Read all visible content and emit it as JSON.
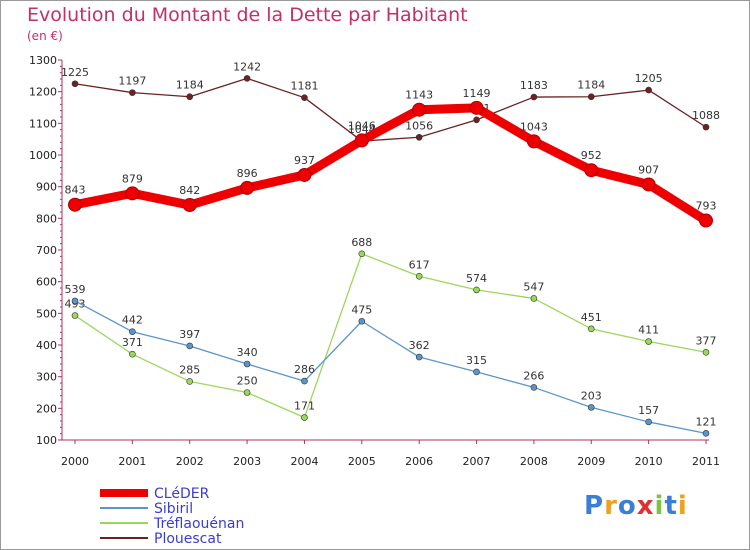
{
  "chart_data": {
    "type": "line",
    "title": "Evolution du Montant de la Dette par Habitant",
    "subtitle": "(en €)",
    "x": [
      "2000",
      "2001",
      "2002",
      "2003",
      "2004",
      "2005",
      "2006",
      "2007",
      "2008",
      "2009",
      "2010",
      "2011"
    ],
    "ylim": [
      100,
      1300
    ],
    "yticks": [
      100,
      200,
      300,
      400,
      500,
      600,
      700,
      800,
      900,
      1000,
      1100,
      1200,
      1300
    ],
    "grid": false,
    "legend_position": "bottom-left",
    "series": [
      {
        "name": "CLéDER",
        "color": "#ee0000",
        "values": [
          843,
          879,
          842,
          896,
          937,
          1046,
          1143,
          1149,
          1043,
          952,
          907,
          793
        ]
      },
      {
        "name": "Sibiril",
        "color": "#5b95c9",
        "values": [
          539,
          442,
          397,
          340,
          286,
          475,
          362,
          315,
          266,
          203,
          157,
          121
        ]
      },
      {
        "name": "Tréflaouénan",
        "color": "#9ad85a",
        "values": [
          493,
          371,
          285,
          250,
          171,
          688,
          617,
          574,
          547,
          451,
          411,
          377
        ]
      },
      {
        "name": "Plouescat",
        "color": "#6b2222",
        "values": [
          1225,
          1197,
          1184,
          1242,
          1181,
          1044,
          1056,
          1111,
          1183,
          1184,
          1205,
          1088
        ]
      }
    ]
  },
  "logo": {
    "text": "Proxiti",
    "colors": [
      "#3a7fd5",
      "#f0a020",
      "#3a7fd5",
      "#e03030",
      "#7cc243",
      "#3a7fd5",
      "#f0a020"
    ]
  }
}
